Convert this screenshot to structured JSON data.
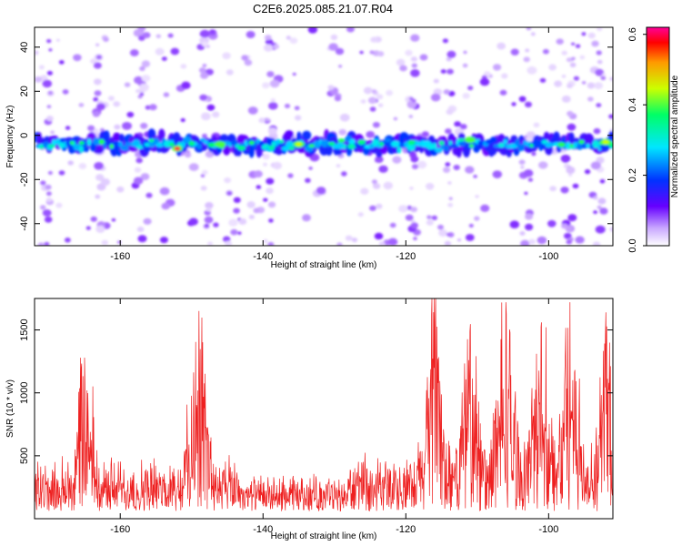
{
  "title": "C2E6.2025.085.21.07.R04",
  "chart_data": [
    {
      "type": "heatmap",
      "xlabel": "Height of straight line (km)",
      "ylabel": "Frequency (Hz)",
      "xlim": [
        -172,
        -91
      ],
      "ylim": [
        -50,
        49
      ],
      "xticks": [
        -160,
        -140,
        -120,
        -100
      ],
      "yticks": [
        -40,
        -20,
        0,
        20,
        40
      ],
      "colorbar": {
        "label": "Normalized spectral amplitude",
        "range": [
          0,
          0.62
        ],
        "ticks": [
          "0.0",
          "0.2",
          "0.4",
          "0.6"
        ],
        "colormap": "rainbow (violet-blue-cyan-green-yellow-red-magenta)"
      },
      "band": {
        "center_hz": -4,
        "halfwidth_hz": 6
      },
      "hot_spots": [
        {
          "x": -152,
          "y": -6,
          "value": 0.6
        },
        {
          "x": -146,
          "y": -4,
          "value": 0.4
        },
        {
          "x": -135,
          "y": -4,
          "value": 0.45
        },
        {
          "x": -111,
          "y": -2,
          "value": 0.4
        },
        {
          "x": -92,
          "y": -3,
          "value": 0.45
        }
      ],
      "grid": false
    },
    {
      "type": "line",
      "xlabel": "Height of straight line (km)",
      "ylabel": "SNR (10 * v/v)",
      "xlim": [
        -172,
        -91
      ],
      "ylim": [
        0,
        1750
      ],
      "xticks": [
        -160,
        -140,
        -120,
        -100
      ],
      "yticks": [
        500,
        1000,
        1500
      ],
      "line_color": "#ee2020",
      "peaks": [
        {
          "x": -165,
          "y": 1280
        },
        {
          "x": -149,
          "y": 1650
        },
        {
          "x": -116,
          "y": 1760
        },
        {
          "x": -111,
          "y": 1490
        },
        {
          "x": -106,
          "y": 1720
        },
        {
          "x": -101,
          "y": 1560
        },
        {
          "x": -97,
          "y": 1720
        },
        {
          "x": -92,
          "y": 1640
        }
      ],
      "grid": false
    }
  ]
}
